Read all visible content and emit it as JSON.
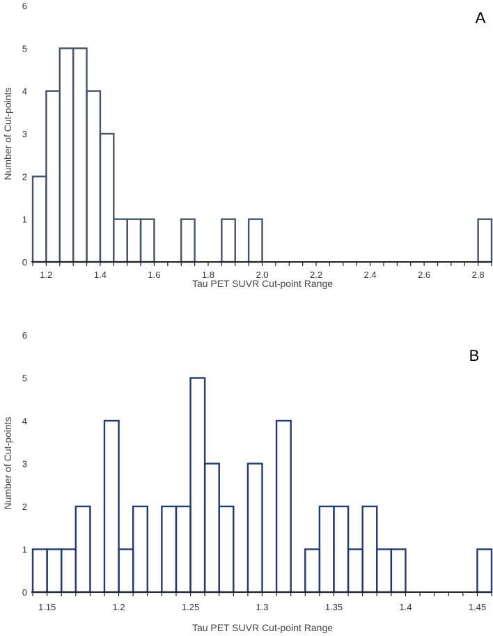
{
  "chart_data": [
    {
      "type": "bar",
      "panel_label": "A",
      "xlabel": "Tau PET  SUVR Cut-point Range",
      "ylabel": "Number of Cut-points",
      "ylim": [
        0,
        6
      ],
      "yticks": [
        "0",
        "1",
        "2",
        "3",
        "4",
        "5",
        "6"
      ],
      "xlim": [
        1.15,
        2.85
      ],
      "bin_width": 0.05,
      "xticks": [
        {
          "value": 1.2,
          "label": "1.2"
        },
        {
          "value": 1.4,
          "label": "1.4"
        },
        {
          "value": 1.6,
          "label": "1.6"
        },
        {
          "value": 1.8,
          "label": "1.8"
        },
        {
          "value": 2.0,
          "label": "2.0"
        },
        {
          "value": 2.2,
          "label": "2.2"
        },
        {
          "value": 2.4,
          "label": "2.4"
        },
        {
          "value": 2.6,
          "label": "2.6"
        },
        {
          "value": 2.8,
          "label": "2.8"
        }
      ],
      "bins": [
        {
          "start": 1.15,
          "count": 2
        },
        {
          "start": 1.2,
          "count": 4
        },
        {
          "start": 1.25,
          "count": 5
        },
        {
          "start": 1.3,
          "count": 5
        },
        {
          "start": 1.35,
          "count": 4
        },
        {
          "start": 1.4,
          "count": 3
        },
        {
          "start": 1.45,
          "count": 1
        },
        {
          "start": 1.5,
          "count": 1
        },
        {
          "start": 1.55,
          "count": 1
        },
        {
          "start": 1.7,
          "count": 1
        },
        {
          "start": 1.85,
          "count": 1
        },
        {
          "start": 1.95,
          "count": 1
        },
        {
          "start": 2.8,
          "count": 1
        }
      ],
      "bar_color": "#44546a"
    },
    {
      "type": "bar",
      "panel_label": "B",
      "xlabel": "Tau PET SUVR Cut-point Range",
      "ylabel": "Number of Cut-points",
      "ylim": [
        0,
        6
      ],
      "yticks": [
        "0",
        "1",
        "2",
        "3",
        "4",
        "5",
        "6"
      ],
      "xlim": [
        1.14,
        1.46
      ],
      "bin_width": 0.01,
      "xticks": [
        {
          "value": 1.15,
          "label": "1.15"
        },
        {
          "value": 1.2,
          "label": "1.2"
        },
        {
          "value": 1.25,
          "label": "1.25"
        },
        {
          "value": 1.3,
          "label": "1.3"
        },
        {
          "value": 1.35,
          "label": "1.35"
        },
        {
          "value": 1.4,
          "label": "1.4"
        },
        {
          "value": 1.45,
          "label": "1.45"
        }
      ],
      "bins": [
        {
          "start": 1.14,
          "count": 1
        },
        {
          "start": 1.15,
          "count": 1
        },
        {
          "start": 1.16,
          "count": 1
        },
        {
          "start": 1.17,
          "count": 2
        },
        {
          "start": 1.19,
          "count": 4
        },
        {
          "start": 1.2,
          "count": 1
        },
        {
          "start": 1.21,
          "count": 2
        },
        {
          "start": 1.23,
          "count": 2
        },
        {
          "start": 1.24,
          "count": 2
        },
        {
          "start": 1.25,
          "count": 5
        },
        {
          "start": 1.26,
          "count": 3
        },
        {
          "start": 1.27,
          "count": 2
        },
        {
          "start": 1.29,
          "count": 3
        },
        {
          "start": 1.31,
          "count": 4
        },
        {
          "start": 1.33,
          "count": 1
        },
        {
          "start": 1.34,
          "count": 2
        },
        {
          "start": 1.35,
          "count": 2
        },
        {
          "start": 1.36,
          "count": 1
        },
        {
          "start": 1.37,
          "count": 2
        },
        {
          "start": 1.38,
          "count": 1
        },
        {
          "start": 1.39,
          "count": 1
        },
        {
          "start": 1.45,
          "count": 1
        }
      ],
      "bar_color": "#1f3a7a"
    }
  ]
}
